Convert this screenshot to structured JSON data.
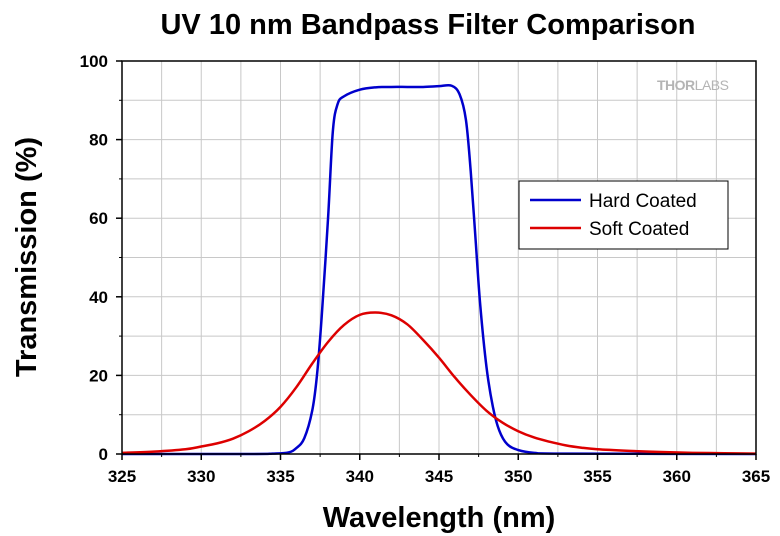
{
  "chart_data": {
    "type": "line",
    "title": "UV 10 nm Bandpass Filter Comparison",
    "xlabel": "Wavelength (nm)",
    "ylabel": "Transmission (%)",
    "xlim": [
      325,
      365
    ],
    "ylim": [
      0,
      100
    ],
    "xticks": [
      325,
      330,
      335,
      340,
      345,
      350,
      355,
      360,
      365
    ],
    "yticks": [
      0,
      20,
      40,
      60,
      80,
      100
    ],
    "grid": true,
    "legend_position": "center-right",
    "series": [
      {
        "name": "Hard Coated",
        "color": "#0000cc",
        "x": [
          325,
          333,
          334.5,
          335.5,
          336,
          336.5,
          337,
          337.3,
          337.6,
          338,
          338.3,
          338.6,
          339,
          340,
          341,
          342,
          343,
          344,
          345,
          345.8,
          346.3,
          346.7,
          347,
          347.3,
          347.6,
          348,
          348.4,
          348.8,
          349.3,
          350,
          351,
          353,
          365
        ],
        "y": [
          0,
          0,
          0.1,
          0.4,
          1.5,
          4,
          11,
          20,
          35,
          60,
          82,
          89,
          91,
          92.7,
          93.3,
          93.4,
          93.4,
          93.4,
          93.6,
          93.7,
          91.5,
          85,
          72,
          55,
          38,
          22,
          12,
          6,
          2.5,
          1,
          0.3,
          0.1,
          0
        ]
      },
      {
        "name": "Soft Coated",
        "color": "#dd0000",
        "x": [
          325,
          327,
          329,
          330,
          331,
          332,
          333,
          334,
          335,
          336,
          337,
          338,
          339,
          340,
          341,
          342,
          343,
          344,
          345,
          346,
          347,
          348,
          349,
          350,
          351,
          352,
          353,
          354,
          355,
          357,
          359,
          361,
          363,
          365
        ],
        "y": [
          0.3,
          0.6,
          1.2,
          1.9,
          2.7,
          3.9,
          5.8,
          8.4,
          12,
          17,
          23,
          28.5,
          32.8,
          35.4,
          36,
          35.3,
          33,
          29,
          24.5,
          19.5,
          15,
          11,
          8,
          5.8,
          4.2,
          3.1,
          2.2,
          1.6,
          1.2,
          0.8,
          0.5,
          0.3,
          0.2,
          0.1
        ]
      }
    ]
  },
  "logo": {
    "text_dark": "THOR",
    "text_light": "LABS",
    "color": "#b4b4b4"
  }
}
